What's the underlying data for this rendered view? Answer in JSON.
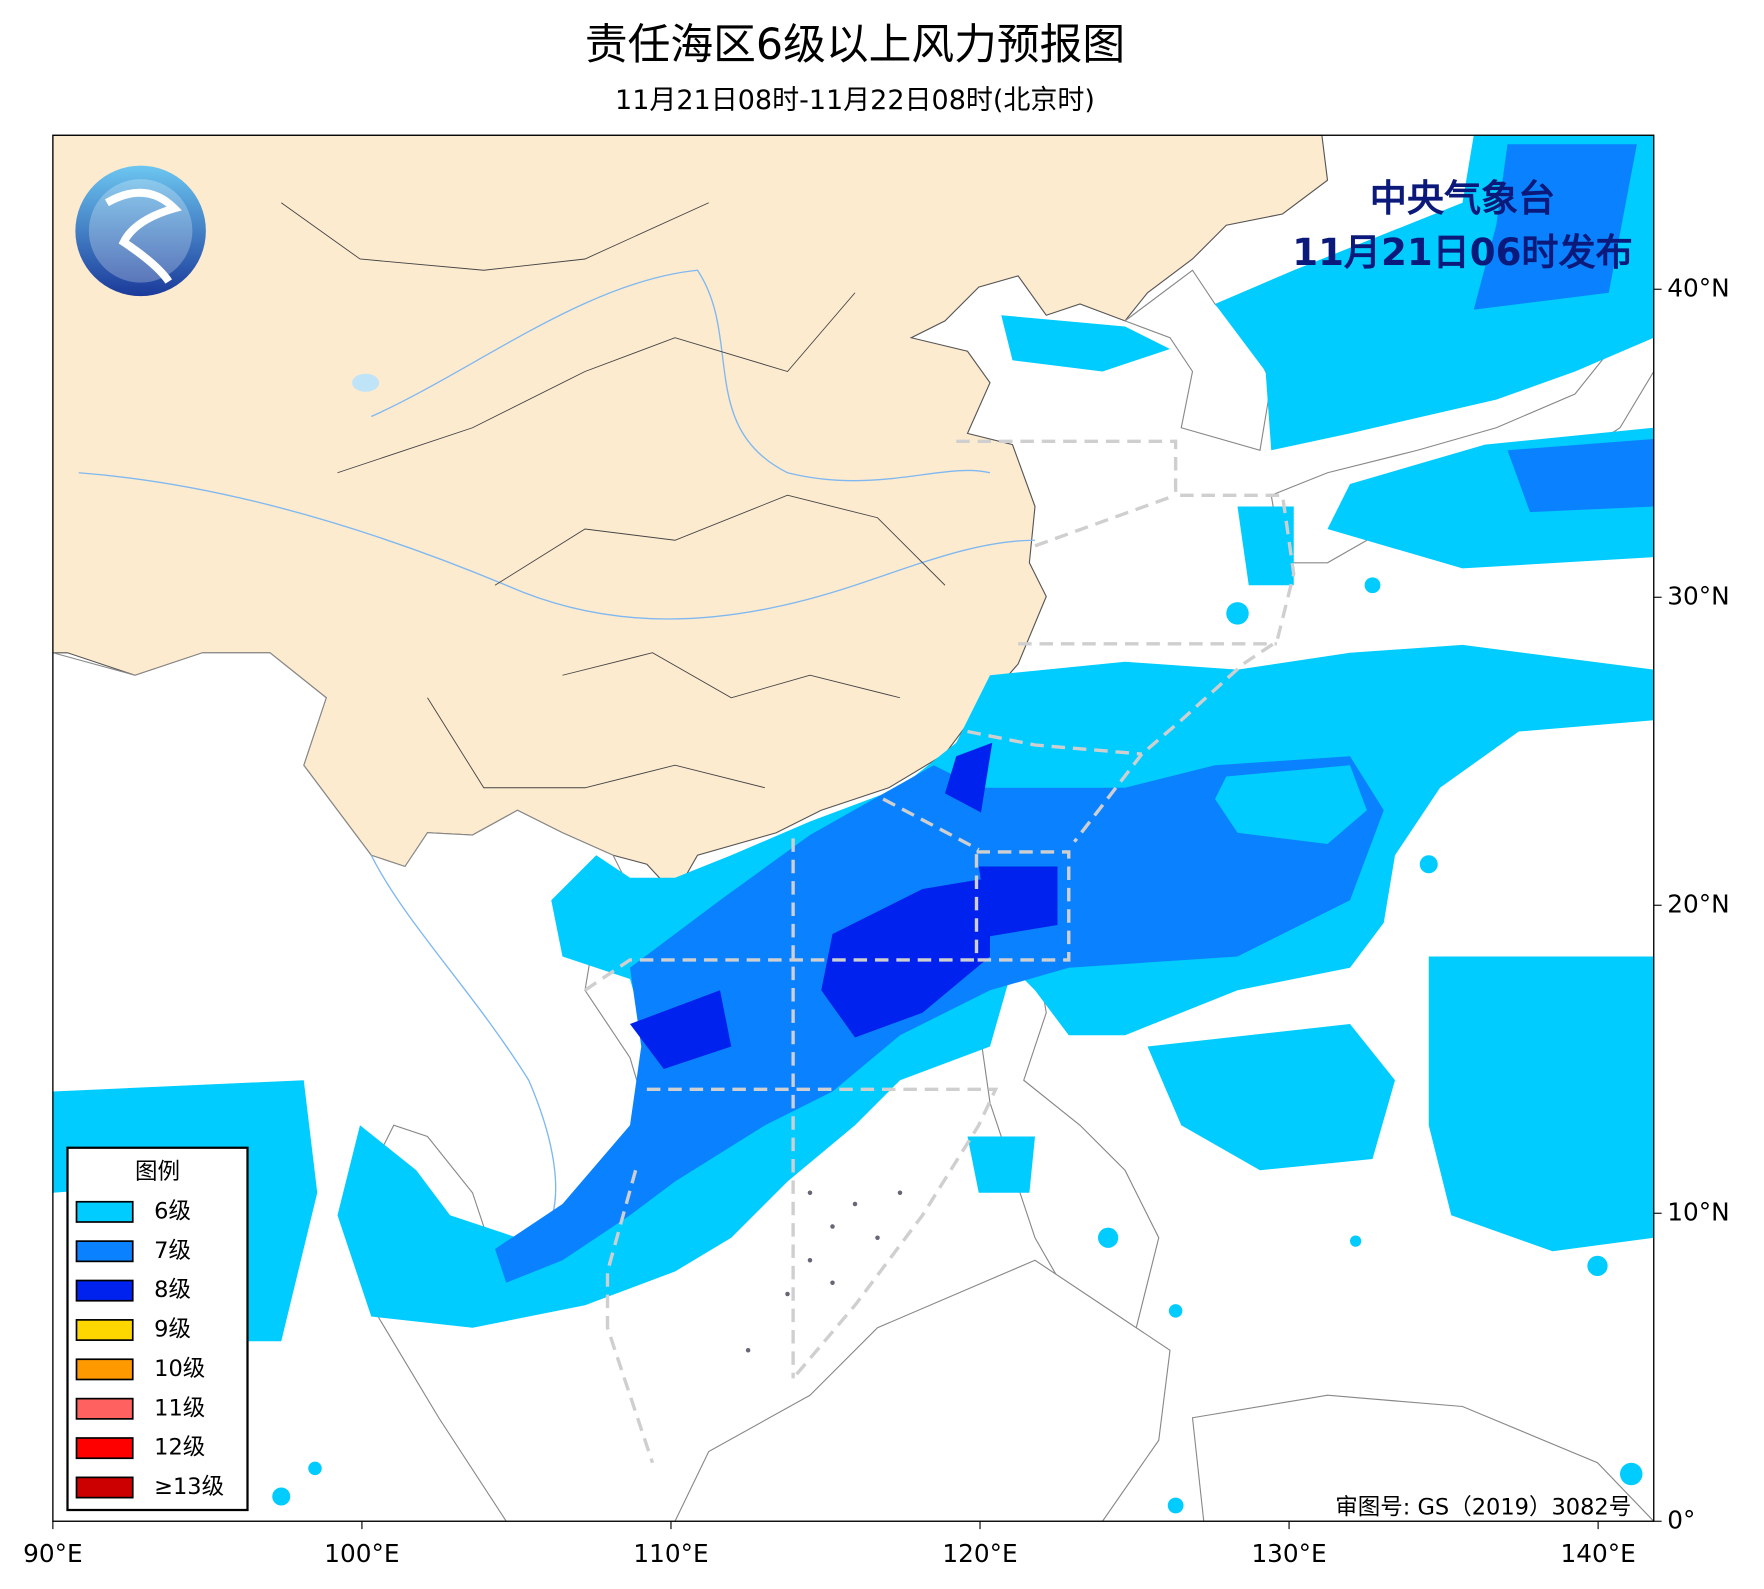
{
  "map": {
    "title": "责任海区6级以上风力预报图",
    "subtitle": "11月21日08时-11月22日08时(北京时)",
    "issuer": [
      "中央气象台",
      "11月21日06时发布"
    ],
    "legend": {
      "title": "图例",
      "items": [
        {
          "label": "6级",
          "color": "#00ccff"
        },
        {
          "label": "7级",
          "color": "#0a82ff"
        },
        {
          "label": "8级",
          "color": "#0022ee"
        },
        {
          "label": "9级",
          "color": "#ffd700"
        },
        {
          "label": "10级",
          "color": "#ff9900"
        },
        {
          "label": "11级",
          "color": "#ff6060"
        },
        {
          "label": "12级",
          "color": "#ff0000"
        },
        {
          "label": "≥13级",
          "color": "#cc0000"
        }
      ]
    },
    "xlim": [
      90,
      141.8
    ],
    "ylim": [
      0,
      45
    ],
    "xticks": [
      {
        "value": 90,
        "label": "90°E"
      },
      {
        "value": 100,
        "label": "100°E"
      },
      {
        "value": 110,
        "label": "110°E"
      },
      {
        "value": 120,
        "label": "120°E"
      },
      {
        "value": 130,
        "label": "130°E"
      },
      {
        "value": 140,
        "label": "140°E"
      }
    ],
    "yticks": [
      {
        "value": 0,
        "label": "0°"
      },
      {
        "value": 10,
        "label": "10°N"
      },
      {
        "value": 20,
        "label": "20°N"
      },
      {
        "value": 30,
        "label": "30°N"
      },
      {
        "value": 40,
        "label": "40°N"
      }
    ],
    "approval": "审图号: GS（2019）3082号"
  }
}
